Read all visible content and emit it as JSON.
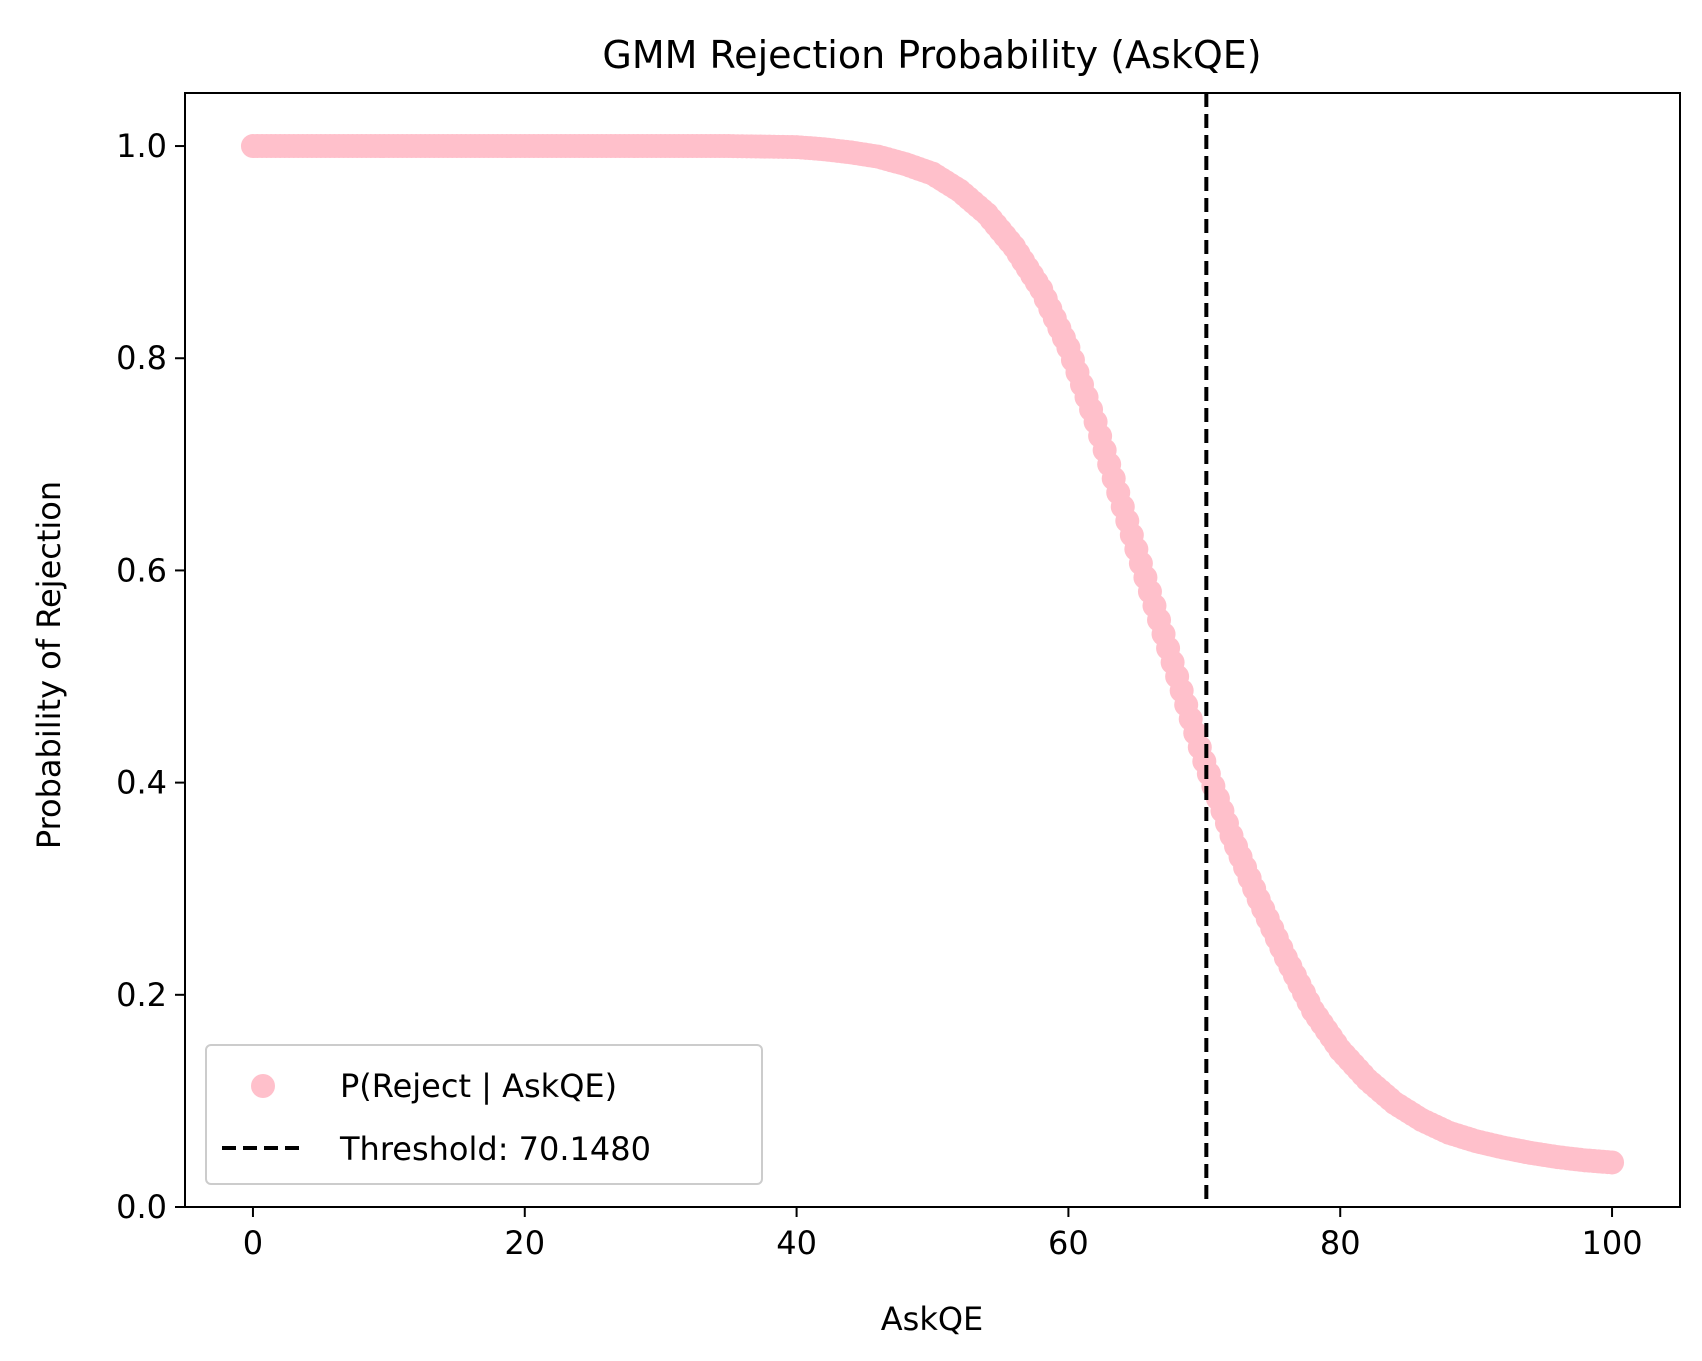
{
  "chart_data": {
    "type": "scatter",
    "title": "GMM Rejection Probability (AskQE)",
    "xlabel": "AskQE",
    "ylabel": "Probability of Rejection",
    "xlim": [
      -5,
      105
    ],
    "ylim": [
      0.0,
      1.05
    ],
    "xticks": [
      0,
      20,
      40,
      60,
      80,
      100
    ],
    "yticks": [
      0.0,
      0.2,
      0.4,
      0.6,
      0.8,
      1.0
    ],
    "x_tick_labels": [
      "0",
      "20",
      "40",
      "60",
      "80",
      "100"
    ],
    "y_tick_labels": [
      "0.0",
      "0.2",
      "0.4",
      "0.6",
      "0.8",
      "1.0"
    ],
    "grid": false,
    "legend_position": "lower-left",
    "series": [
      {
        "name": "P(Reject | AskQE)",
        "kind": "scatter",
        "color": "#ffc0cb",
        "x": [
          0,
          5,
          10,
          15,
          20,
          25,
          30,
          35,
          40,
          42,
          44,
          46,
          48,
          50,
          52,
          54,
          56,
          58,
          60,
          62,
          64,
          66,
          68,
          70,
          72,
          74,
          76,
          78,
          80,
          82,
          84,
          86,
          88,
          90,
          92,
          94,
          96,
          98,
          100
        ],
        "y": [
          1.0,
          1.0,
          1.0,
          1.0,
          1.0,
          1.0,
          1.0,
          1.0,
          0.999,
          0.997,
          0.994,
          0.99,
          0.983,
          0.974,
          0.958,
          0.936,
          0.905,
          0.865,
          0.81,
          0.74,
          0.66,
          0.58,
          0.5,
          0.42,
          0.35,
          0.29,
          0.235,
          0.185,
          0.148,
          0.12,
          0.098,
          0.082,
          0.07,
          0.062,
          0.056,
          0.051,
          0.047,
          0.044,
          0.042
        ]
      },
      {
        "name": "Threshold: 70.1480",
        "kind": "vline",
        "color": "#000000",
        "x": 70.148,
        "linestyle": "dashed"
      }
    ]
  }
}
